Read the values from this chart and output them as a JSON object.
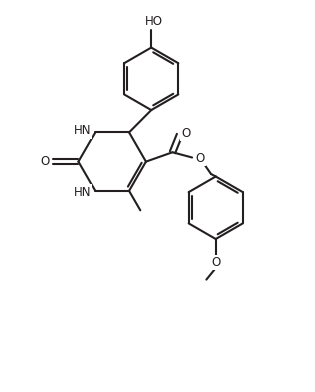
{
  "line_color": "#231f20",
  "bg_color": "#ffffff",
  "lw": 1.5,
  "fs": 8.5,
  "fw": 3.15,
  "fh": 3.92,
  "dpi": 100,
  "xlim": [
    -0.5,
    8.5
  ],
  "ylim": [
    -1.0,
    11.5
  ]
}
